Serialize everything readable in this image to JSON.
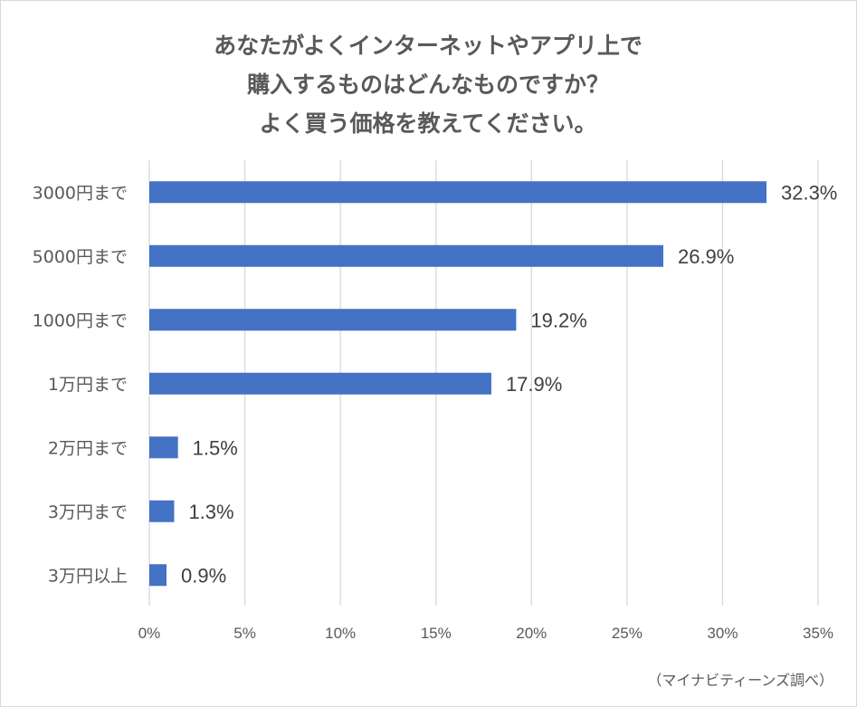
{
  "chart_data": {
    "type": "bar",
    "orientation": "horizontal",
    "title_lines": [
      "あなたがよくインターネットやアプリ上で",
      "購入するものはどんなものですか？",
      "よく買う価格を教えてください。"
    ],
    "categories": [
      "3000円まで",
      "5000円まで",
      "1000円まで",
      "1万円まで",
      "2万円まで",
      "3万円まで",
      "3万円以上"
    ],
    "values": [
      32.3,
      26.9,
      19.2,
      17.9,
      1.5,
      1.3,
      0.9
    ],
    "data_labels": [
      "32.3%",
      "26.9%",
      "19.2%",
      "17.9%",
      "1.5%",
      "1.3%",
      "0.9%"
    ],
    "xlim": [
      0,
      35
    ],
    "x_ticks": [
      0,
      5,
      10,
      15,
      20,
      25,
      30,
      35
    ],
    "x_tick_labels": [
      "0%",
      "5%",
      "10%",
      "15%",
      "20%",
      "25%",
      "30%",
      "35%"
    ],
    "grid": "vertical",
    "legend": "none",
    "bar_color": "#4472c4",
    "grid_color": "#d9d9d9"
  },
  "source_note": "（マイナビティーンズ調べ）"
}
